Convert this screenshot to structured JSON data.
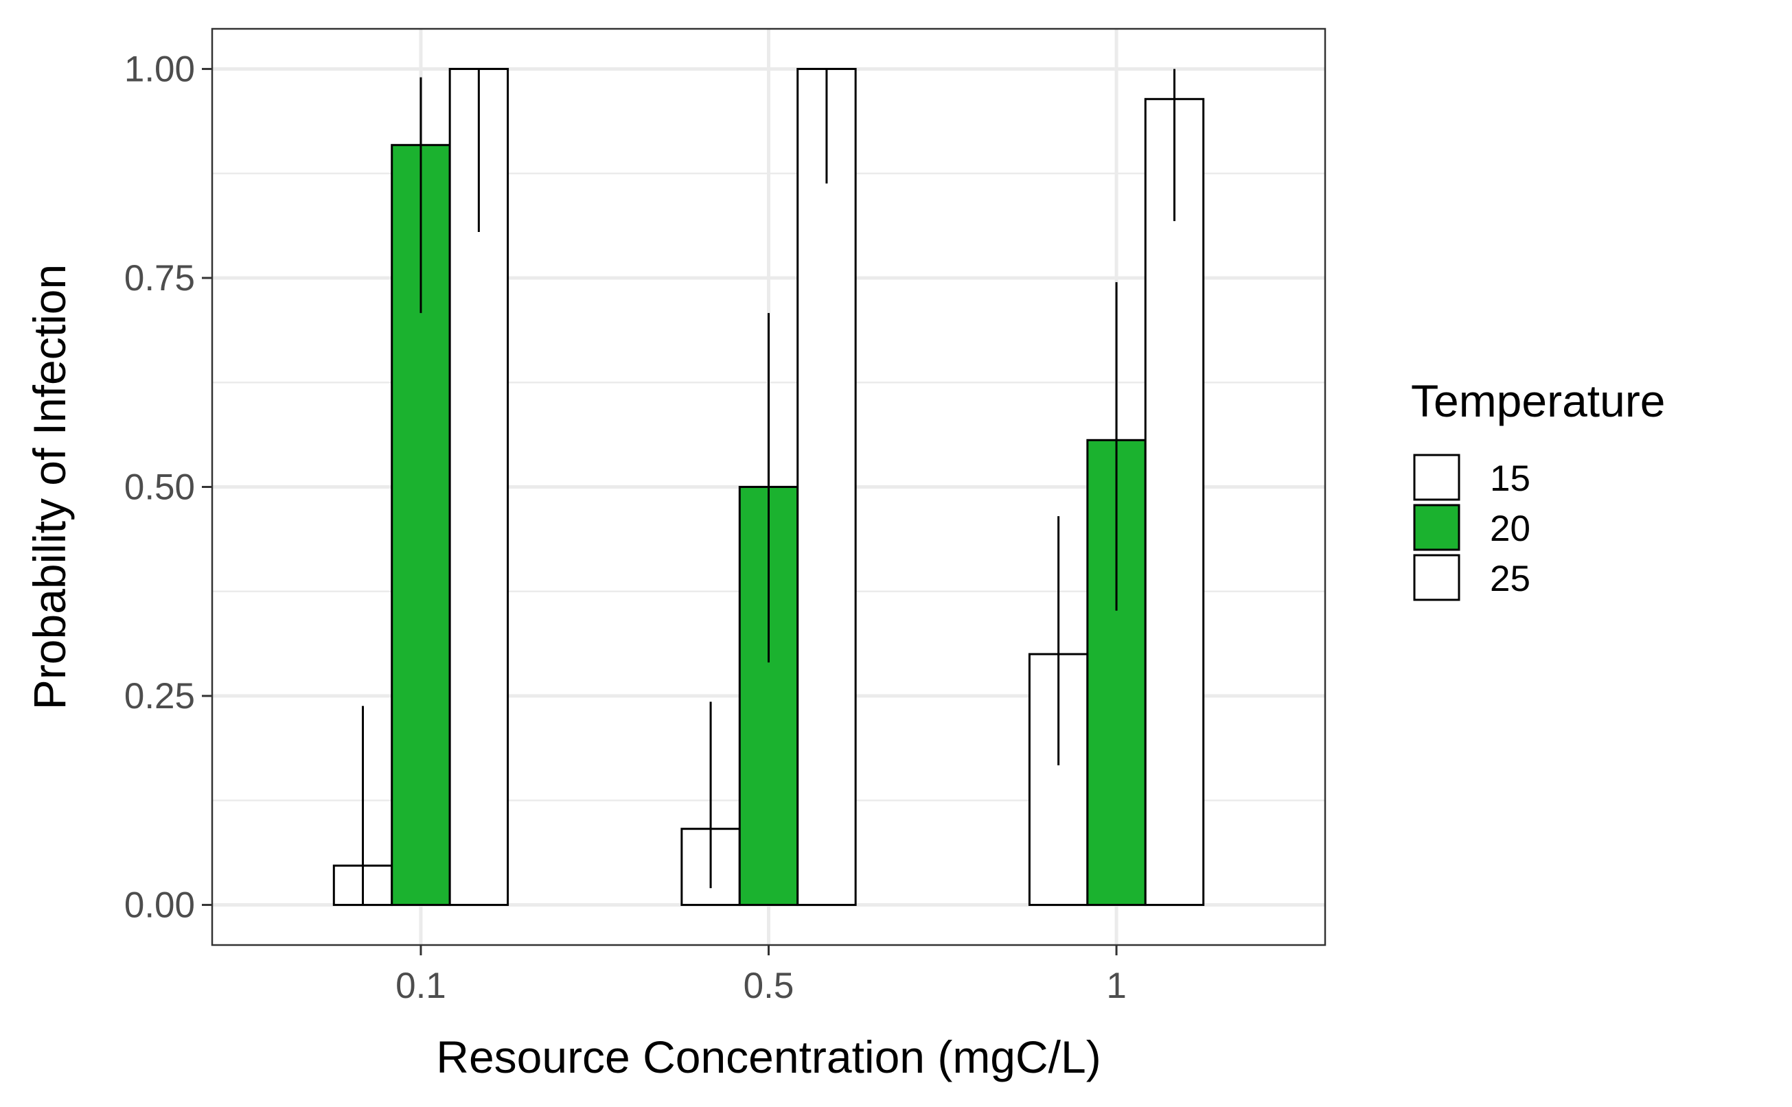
{
  "chart_data": {
    "type": "bar",
    "title": "",
    "xlabel": "Resource Concentration (mgC/L)",
    "ylabel": "Probability of Infection",
    "categories": [
      "0.1",
      "0.5",
      "1"
    ],
    "ylim": [
      -0.048,
      1.048
    ],
    "yticks": [
      "0.00",
      "0.25",
      "0.50",
      "0.75",
      "1.00"
    ],
    "grid": true,
    "legend": {
      "title": "Temperature",
      "position": "right"
    },
    "series": [
      {
        "name": "15",
        "color": "#ffffff",
        "values": [
          0.047,
          0.091,
          0.3
        ],
        "err_low": [
          0.0,
          0.02,
          0.167
        ],
        "err_high": [
          0.238,
          0.243,
          0.465
        ]
      },
      {
        "name": "20",
        "color": "#1bb22f",
        "values": [
          0.909,
          0.5,
          0.556
        ],
        "err_low": [
          0.708,
          0.29,
          0.352
        ],
        "err_high": [
          0.99,
          0.708,
          0.745
        ]
      },
      {
        "name": "25",
        "color": "#ffffff",
        "values": [
          1.0,
          1.0,
          0.964
        ],
        "err_low": [
          0.805,
          0.863,
          0.818
        ],
        "err_high": [
          1.0,
          1.0,
          1.0
        ]
      }
    ]
  }
}
